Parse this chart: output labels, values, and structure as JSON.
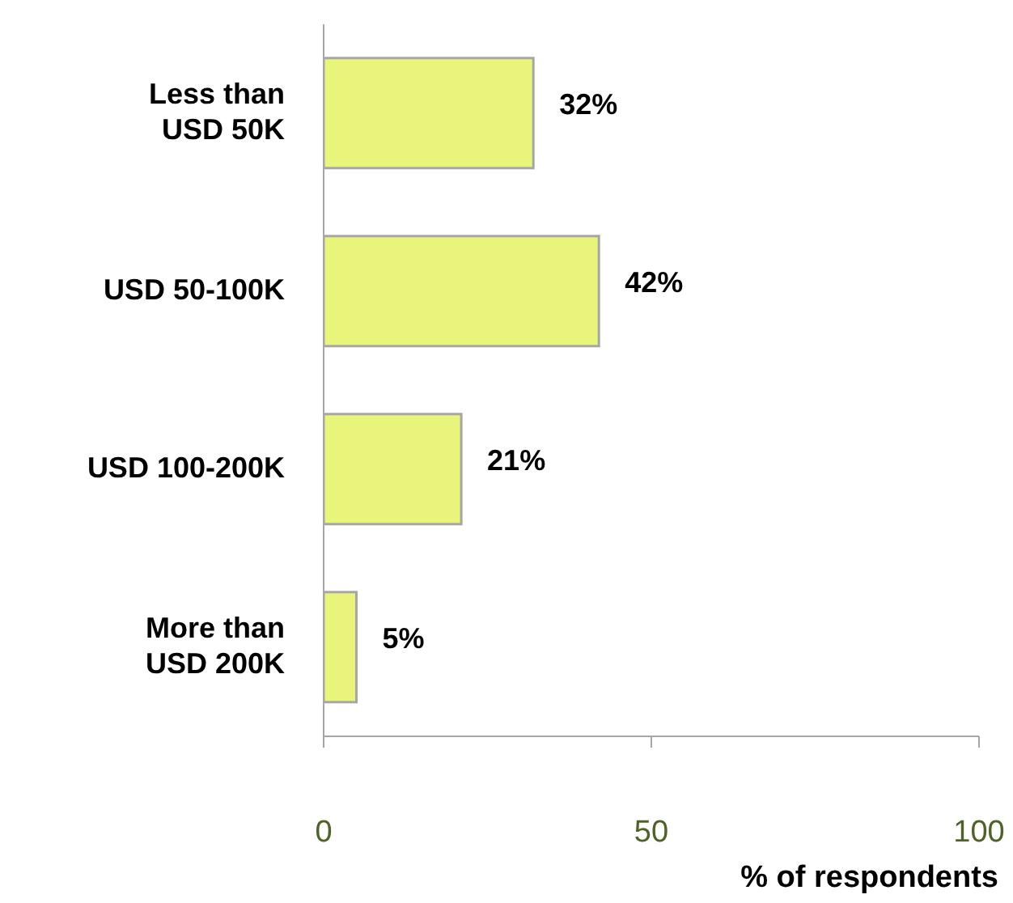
{
  "chart_data": {
    "type": "bar",
    "orientation": "horizontal",
    "xlabel": "% of respondents",
    "categories": [
      "Less than USD 50K",
      "USD 50-100K",
      "USD 100-200K",
      "More than USD 200K"
    ],
    "values": [
      32,
      42,
      21,
      5
    ],
    "value_labels": [
      "32%",
      "42%",
      "21%",
      "5%"
    ],
    "color": "#e8f57a",
    "xlim": [
      0,
      100
    ],
    "xticks": [
      0,
      50,
      100
    ]
  }
}
